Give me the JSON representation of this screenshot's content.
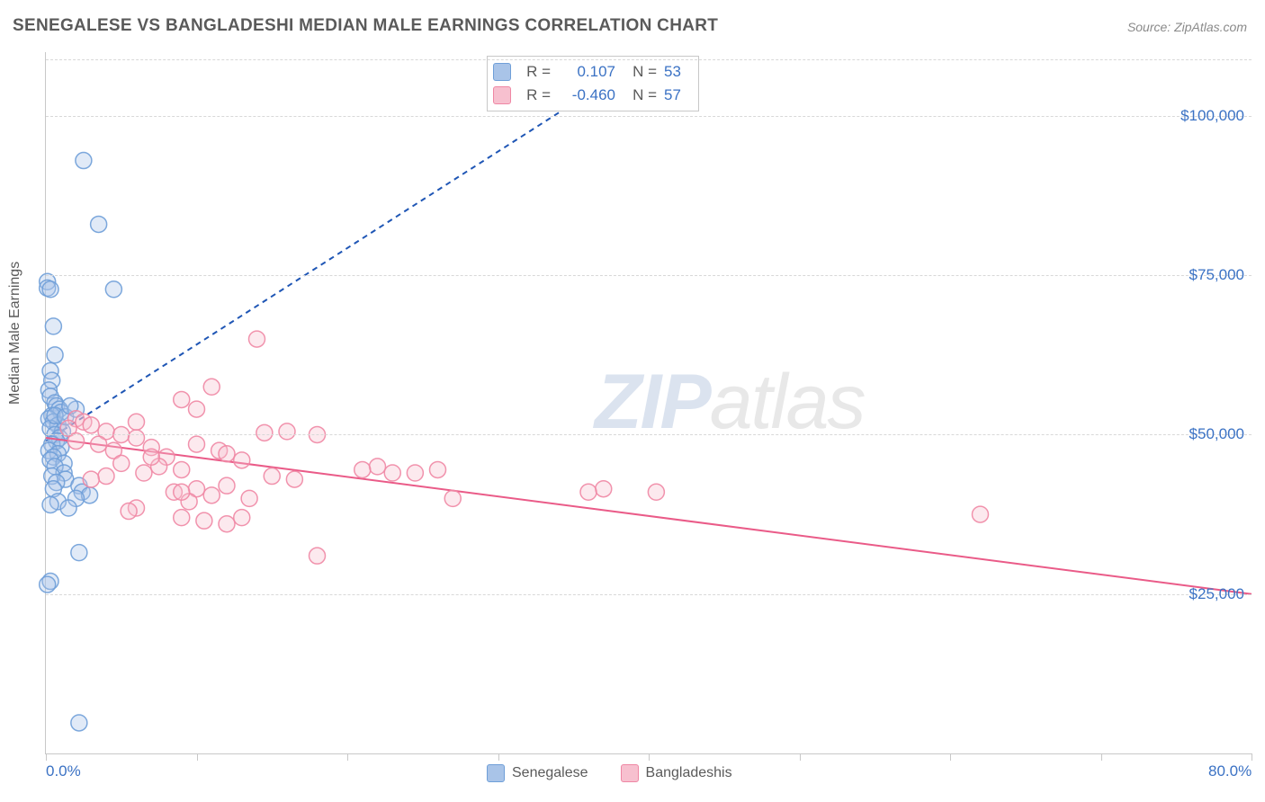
{
  "title": "SENEGALESE VS BANGLADESHI MEDIAN MALE EARNINGS CORRELATION CHART",
  "source_prefix": "Source: ",
  "source_name": "ZipAtlas.com",
  "y_axis_label": "Median Male Earnings",
  "watermark_zip": "ZIP",
  "watermark_atlas": "atlas",
  "chart": {
    "type": "scatter",
    "background_color": "#ffffff",
    "grid_color": "#d8d8d8",
    "axis_color": "#c8c8c8",
    "tick_label_color": "#3b72c4",
    "tick_label_fontsize": 17,
    "title_fontsize": 19,
    "title_color": "#5a5a5a",
    "xlim": [
      0,
      80
    ],
    "ylim": [
      0,
      110000
    ],
    "x_ticks": [
      0,
      10,
      20,
      30,
      40,
      50,
      60,
      70,
      80
    ],
    "x_tick_labels_shown": {
      "0": "0.0%",
      "80": "80.0%"
    },
    "y_gridlines": [
      25000,
      50000,
      75000,
      100000
    ],
    "y_tick_labels": {
      "25000": "$25,000",
      "50000": "$50,000",
      "75000": "$75,000",
      "100000": "$100,000"
    },
    "marker_radius": 9,
    "marker_opacity": 0.35,
    "marker_stroke_opacity": 0.9,
    "line_width": 2
  },
  "series": [
    {
      "name": "Senegalese",
      "color_fill": "#a9c4e8",
      "color_stroke": "#6f9fd8",
      "line_color": "#1f56b5",
      "line_dash": "6,5",
      "R": "0.107",
      "N": "53",
      "trend": {
        "x1": 0,
        "y1": 49000,
        "x2": 37,
        "y2": 105000
      },
      "points": [
        [
          0.1,
          74000
        ],
        [
          0.1,
          73000
        ],
        [
          0.3,
          72800
        ],
        [
          4.5,
          72800
        ],
        [
          0.5,
          67000
        ],
        [
          2.5,
          93000
        ],
        [
          3.5,
          83000
        ],
        [
          0.6,
          62500
        ],
        [
          0.3,
          60000
        ],
        [
          0.4,
          58500
        ],
        [
          0.2,
          57000
        ],
        [
          0.3,
          56000
        ],
        [
          0.6,
          55000
        ],
        [
          0.7,
          54500
        ],
        [
          0.9,
          54000
        ],
        [
          1.0,
          53500
        ],
        [
          0.4,
          53000
        ],
        [
          0.2,
          52500
        ],
        [
          0.5,
          52000
        ],
        [
          0.8,
          51500
        ],
        [
          0.3,
          51000
        ],
        [
          1.1,
          50500
        ],
        [
          0.6,
          50000
        ],
        [
          0.9,
          49500
        ],
        [
          0.7,
          49000
        ],
        [
          0.4,
          48500
        ],
        [
          1.0,
          48000
        ],
        [
          0.2,
          47500
        ],
        [
          0.8,
          47000
        ],
        [
          0.5,
          46500
        ],
        [
          0.3,
          46000
        ],
        [
          1.2,
          45500
        ],
        [
          0.6,
          45000
        ],
        [
          1.2,
          44000
        ],
        [
          0.4,
          43500
        ],
        [
          1.3,
          43000
        ],
        [
          0.7,
          42500
        ],
        [
          2.2,
          42000
        ],
        [
          0.5,
          41500
        ],
        [
          2.4,
          41000
        ],
        [
          2.9,
          40500
        ],
        [
          2.0,
          40000
        ],
        [
          0.8,
          39500
        ],
        [
          0.3,
          39000
        ],
        [
          1.5,
          38500
        ],
        [
          0.6,
          53000
        ],
        [
          1.3,
          52800
        ],
        [
          2.0,
          54000
        ],
        [
          2.2,
          31500
        ],
        [
          0.3,
          27000
        ],
        [
          0.1,
          26500
        ],
        [
          2.2,
          4800
        ],
        [
          1.6,
          54500
        ]
      ]
    },
    {
      "name": "Bangladeshis",
      "color_fill": "#f7c0cf",
      "color_stroke": "#ef87a4",
      "line_color": "#ea5b88",
      "line_dash": "",
      "R": "-0.460",
      "N": "57",
      "trend": {
        "x1": 0,
        "y1": 49500,
        "x2": 80,
        "y2": 25000
      },
      "points": [
        [
          14,
          65000
        ],
        [
          11,
          57500
        ],
        [
          9,
          55500
        ],
        [
          10,
          54000
        ],
        [
          6,
          52000
        ],
        [
          2,
          52500
        ],
        [
          2.5,
          52000
        ],
        [
          3,
          51500
        ],
        [
          1.5,
          51000
        ],
        [
          4,
          50500
        ],
        [
          5,
          50000
        ],
        [
          6,
          49500
        ],
        [
          2,
          49000
        ],
        [
          3.5,
          48500
        ],
        [
          7,
          48000
        ],
        [
          4.5,
          47500
        ],
        [
          16,
          50500
        ],
        [
          14.5,
          50300
        ],
        [
          18,
          50000
        ],
        [
          10,
          48500
        ],
        [
          11.5,
          47500
        ],
        [
          12,
          47000
        ],
        [
          13,
          46000
        ],
        [
          8,
          46500
        ],
        [
          5,
          45500
        ],
        [
          7.5,
          45000
        ],
        [
          9,
          44500
        ],
        [
          6.5,
          44000
        ],
        [
          4,
          43500
        ],
        [
          3,
          43000
        ],
        [
          22,
          45000
        ],
        [
          21,
          44500
        ],
        [
          23,
          44000
        ],
        [
          24.5,
          44000
        ],
        [
          15,
          43500
        ],
        [
          16.5,
          43000
        ],
        [
          12,
          42000
        ],
        [
          10,
          41500
        ],
        [
          8.5,
          41000
        ],
        [
          11,
          40500
        ],
        [
          13.5,
          40000
        ],
        [
          9.5,
          39500
        ],
        [
          7,
          46500
        ],
        [
          6,
          38500
        ],
        [
          5.5,
          38000
        ],
        [
          27,
          40000
        ],
        [
          26,
          44500
        ],
        [
          37,
          41500
        ],
        [
          36,
          41000
        ],
        [
          18,
          31000
        ],
        [
          9,
          37000
        ],
        [
          13,
          37000
        ],
        [
          10.5,
          36500
        ],
        [
          12,
          36000
        ],
        [
          62,
          37500
        ],
        [
          40.5,
          41000
        ],
        [
          9,
          41000
        ]
      ]
    }
  ],
  "bottom_legend_labels": {
    "s1": "Senegalese",
    "s2": "Bangladeshis"
  },
  "legendbox": {
    "R_label": "R =",
    "N_label": "N ="
  }
}
